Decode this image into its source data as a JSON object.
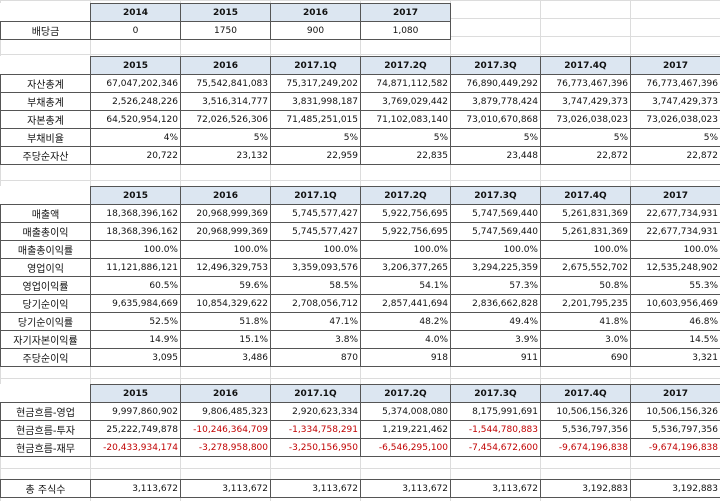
{
  "dividend": {
    "label": "배당금",
    "years": [
      "2014",
      "2015",
      "2016",
      "2017"
    ],
    "values": [
      "0",
      "1750",
      "900",
      "1,080"
    ]
  },
  "balance": {
    "headers": [
      "2015",
      "2016",
      "2017.1Q",
      "2017.2Q",
      "2017.3Q",
      "2017.4Q",
      "2017"
    ],
    "rows": [
      {
        "label": "자산총계",
        "values": [
          "67,047,202,346",
          "75,542,841,083",
          "75,317,249,202",
          "74,871,112,582",
          "76,890,449,292",
          "76,773,467,396",
          "76,773,467,396"
        ]
      },
      {
        "label": "부채총계",
        "values": [
          "2,526,248,226",
          "3,516,314,777",
          "3,831,998,187",
          "3,769,029,442",
          "3,879,778,424",
          "3,747,429,373",
          "3,747,429,373"
        ]
      },
      {
        "label": "자본총계",
        "values": [
          "64,520,954,120",
          "72,026,526,306",
          "71,485,251,015",
          "71,102,083,140",
          "73,010,670,868",
          "73,026,038,023",
          "73,026,038,023"
        ]
      },
      {
        "label": "부채비율",
        "values": [
          "4%",
          "5%",
          "5%",
          "5%",
          "5%",
          "5%",
          "5%"
        ]
      },
      {
        "label": "주당순자산",
        "values": [
          "20,722",
          "23,132",
          "22,959",
          "22,835",
          "23,448",
          "22,872",
          "22,872"
        ]
      }
    ]
  },
  "income": {
    "headers": [
      "2015",
      "2016",
      "2017.1Q",
      "2017.2Q",
      "2017.3Q",
      "2017.4Q",
      "2017"
    ],
    "rows": [
      {
        "label": "매출액",
        "values": [
          "18,368,396,162",
          "20,968,999,369",
          "5,745,577,427",
          "5,922,756,695",
          "5,747,569,440",
          "5,261,831,369",
          "22,677,734,931"
        ]
      },
      {
        "label": "매출총이익",
        "values": [
          "18,368,396,162",
          "20,968,999,369",
          "5,745,577,427",
          "5,922,756,695",
          "5,747,569,440",
          "5,261,831,369",
          "22,677,734,931"
        ]
      },
      {
        "label": "매출총이익률",
        "values": [
          "100.0%",
          "100.0%",
          "100.0%",
          "100.0%",
          "100.0%",
          "100.0%",
          "100.0%"
        ]
      },
      {
        "label": "영업이익",
        "values": [
          "11,121,886,121",
          "12,496,329,753",
          "3,359,093,576",
          "3,206,377,265",
          "3,294,225,359",
          "2,675,552,702",
          "12,535,248,902"
        ]
      },
      {
        "label": "영업이익률",
        "values": [
          "60.5%",
          "59.6%",
          "58.5%",
          "54.1%",
          "57.3%",
          "50.8%",
          "55.3%"
        ]
      },
      {
        "label": "당기순이익",
        "values": [
          "9,635,984,669",
          "10,854,329,622",
          "2,708,056,712",
          "2,857,441,694",
          "2,836,662,828",
          "2,201,795,235",
          "10,603,956,469"
        ]
      },
      {
        "label": "당기순이익률",
        "values": [
          "52.5%",
          "51.8%",
          "47.1%",
          "48.2%",
          "49.4%",
          "41.8%",
          "46.8%"
        ]
      },
      {
        "label": "자기자본이익률",
        "values": [
          "14.9%",
          "15.1%",
          "3.8%",
          "4.0%",
          "3.9%",
          "3.0%",
          "14.5%"
        ]
      },
      {
        "label": "주당순이익",
        "values": [
          "3,095",
          "3,486",
          "870",
          "918",
          "911",
          "690",
          "3,321"
        ]
      }
    ]
  },
  "cashflow": {
    "headers": [
      "2015",
      "2016",
      "2017.1Q",
      "2017.2Q",
      "2017.3Q",
      "2017.4Q",
      "2017"
    ],
    "rows": [
      {
        "label": "현금흐름-영업",
        "values": [
          "9,997,860,902",
          "9,806,485,323",
          "2,920,623,334",
          "5,374,008,080",
          "8,175,991,691",
          "10,506,156,326",
          "10,506,156,326"
        ]
      },
      {
        "label": "현금흐름-투자",
        "values": [
          "25,222,749,878",
          "-10,246,364,709",
          "-1,334,758,291",
          "1,219,221,462",
          "-1,544,780,883",
          "5,536,797,356",
          "5,536,797,356"
        ]
      },
      {
        "label": "현금흐름-재무",
        "values": [
          "-20,433,934,174",
          "-3,278,958,800",
          "-3,250,156,950",
          "-6,546,295,100",
          "-7,454,672,600",
          "-9,674,196,838",
          "-9,674,196,838"
        ]
      }
    ]
  },
  "shares": {
    "label": "총 주식수",
    "values": [
      "3,113,672",
      "3,113,672",
      "3,113,672",
      "3,113,672",
      "3,113,672",
      "3,192,883",
      "3,192,883"
    ]
  },
  "colors": {
    "header_fill": "#dce6f1",
    "negative_text": "#c00000",
    "border": "#555555"
  }
}
